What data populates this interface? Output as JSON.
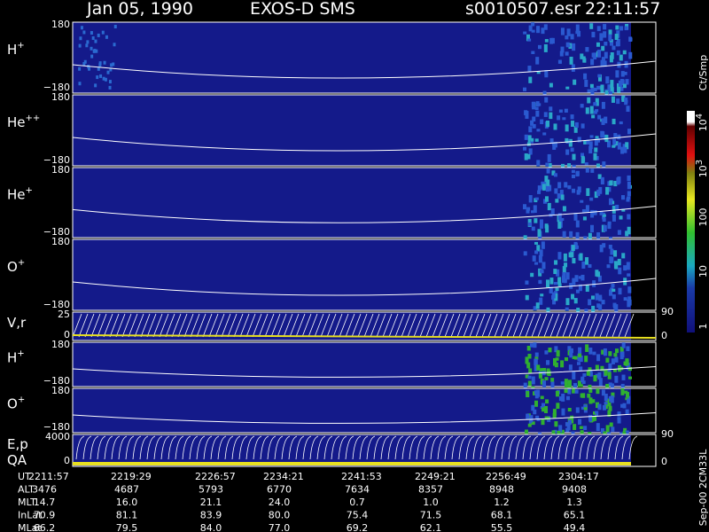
{
  "header": {
    "date": "Jan 05, 1990",
    "instrument": "EXOS-D SMS",
    "file": "s0010507.esr",
    "time": "22:11:57"
  },
  "panels": [
    {
      "label": "H",
      "sup": "+",
      "ticks": [
        "180",
        "−180"
      ]
    },
    {
      "label": "He",
      "sup": "++",
      "ticks": [
        "180",
        "−180"
      ]
    },
    {
      "label": "He",
      "sup": "+",
      "ticks": [
        "180",
        "−180"
      ]
    },
    {
      "label": "O",
      "sup": "+",
      "ticks": [
        "180",
        "−180"
      ]
    },
    {
      "label": "V,r",
      "ticks": [
        "25",
        "0"
      ],
      "right_ticks": [
        "90",
        "0"
      ]
    },
    {
      "label": "H",
      "sup": "+",
      "ticks": [
        "180",
        "−180"
      ]
    },
    {
      "label": "O",
      "sup": "+",
      "ticks": [
        "180",
        "−180"
      ]
    },
    {
      "label": "E,p",
      "label2": "QA",
      "ticks": [
        "4000",
        "0"
      ],
      "right_ticks": [
        "90",
        "0"
      ]
    }
  ],
  "colorbar": {
    "unit": "Ct/Smp",
    "labels": [
      {
        "base": "10",
        "exp": "4"
      },
      {
        "base": "10",
        "exp": "3"
      },
      {
        "base": "100"
      },
      {
        "base": "10"
      },
      {
        "base": "1"
      }
    ]
  },
  "footer": {
    "rows": [
      {
        "name": "UT",
        "values": [
          "2211:57",
          "2219:29",
          "2226:57",
          "2234:21",
          "2241:53",
          "2249:21",
          "2256:49",
          "2304:17"
        ]
      },
      {
        "name": "ALT",
        "values": [
          "3476",
          "4687",
          "5793",
          "6770",
          "7634",
          "8357",
          "8948",
          "9408"
        ]
      },
      {
        "name": "MLT",
        "values": [
          "14.7",
          "16.0",
          "21.1",
          "24.0",
          "0.7",
          "1.0",
          "1.2",
          "1.3"
        ]
      },
      {
        "name": "InLat",
        "values": [
          "70.9",
          "81.1",
          "83.9",
          "80.0",
          "75.4",
          "71.5",
          "68.1",
          "65.1"
        ]
      },
      {
        "name": "MLat",
        "values": [
          "66.2",
          "79.5",
          "84.0",
          "77.0",
          "69.2",
          "62.1",
          "55.5",
          "49.4"
        ]
      }
    ]
  },
  "side_note": "Sep-00 2CM33L"
}
